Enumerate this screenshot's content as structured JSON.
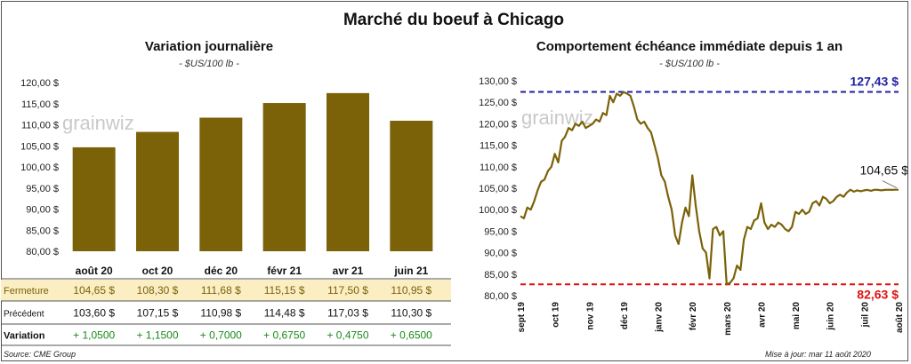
{
  "main_title": "Marché du boeuf à Chicago",
  "source": "Source: CME Group",
  "updated": "Mise à jour: mar 11 août 2020",
  "watermark": "grainwiz",
  "colors": {
    "bar": "#7b6108",
    "line": "#7b6108",
    "high": "#1f1fa6",
    "low": "#e01010",
    "positive": "#1a8a1a",
    "highlight_row": "#fbeec3"
  },
  "chart_data": [
    {
      "type": "bar",
      "title": "Variation  journalière",
      "subtitle": "- $US/100 lb -",
      "categories": [
        "août 20",
        "oct 20",
        "déc 20",
        "févr 21",
        "avr 21",
        "juin 21"
      ],
      "values": [
        104.65,
        108.3,
        111.68,
        115.15,
        117.5,
        110.95
      ],
      "ylim": [
        80,
        120
      ],
      "yticks": [
        "80,00 $",
        "85,00 $",
        "90,00 $",
        "95,00 $",
        "100,00 $",
        "105,00 $",
        "110,00 $",
        "115,00 $",
        "120,00 $"
      ],
      "table": {
        "rows": [
          {
            "label": "Fermeture",
            "values": [
              "104,65  $",
              "108,30  $",
              "111,68  $",
              "115,15  $",
              "117,50  $",
              "110,95  $"
            ]
          },
          {
            "label": "Précédent",
            "values": [
              "103,60  $",
              "107,15  $",
              "110,98  $",
              "114,48  $",
              "117,03  $",
              "110,30  $"
            ]
          },
          {
            "label": "Variation",
            "values": [
              "+ 1,0500",
              "+ 1,1500",
              "+ 0,7000",
              "+ 0,6750",
              "+ 0,4750",
              "+ 0,6500"
            ]
          }
        ]
      }
    },
    {
      "type": "line",
      "title": "Comportement  échéance immédiate depuis 1 an",
      "subtitle": "- $US/100 lb -",
      "ylim": [
        80,
        130
      ],
      "yticks": [
        "80,00 $",
        "85,00 $",
        "90,00 $",
        "95,00 $",
        "100,00 $",
        "105,00 $",
        "110,00 $",
        "115,00 $",
        "120,00 $",
        "125,00 $",
        "130,00 $"
      ],
      "xticks": [
        "sept 19",
        "oct 19",
        "nov 19",
        "déc 19",
        "janv 20",
        "févr 20",
        "mars 20",
        "avr 20",
        "mai 20",
        "juin 20",
        "juil 20",
        "août 20"
      ],
      "high": {
        "value": 127.43,
        "label": "127,43 $"
      },
      "low": {
        "value": 82.63,
        "label": "82,63 $"
      },
      "last": {
        "value": 104.65,
        "label": "104,65 $"
      },
      "series": [
        {
          "x": [
            0,
            0.1,
            0.2,
            0.3,
            0.4,
            0.5,
            0.6,
            0.7,
            0.8,
            0.9,
            1.0,
            1.1,
            1.2,
            1.3,
            1.4,
            1.5,
            1.6,
            1.7,
            1.8,
            1.9,
            2.0,
            2.1,
            2.2,
            2.3,
            2.4,
            2.5,
            2.6,
            2.7,
            2.8,
            2.9,
            3.0,
            3.1,
            3.2,
            3.3,
            3.4,
            3.5,
            3.6,
            3.7,
            3.8,
            3.9,
            4.0,
            4.1,
            4.2,
            4.3,
            4.4,
            4.5,
            4.6,
            4.7,
            4.8,
            4.9,
            5.0,
            5.1,
            5.2,
            5.3,
            5.4,
            5.5,
            5.6,
            5.7,
            5.8,
            5.9,
            6.0,
            6.1,
            6.2,
            6.3,
            6.4,
            6.5,
            6.6,
            6.7,
            6.8,
            6.9,
            7.0,
            7.1,
            7.2,
            7.3,
            7.4,
            7.5,
            7.6,
            7.7,
            7.8,
            7.9,
            8.0,
            8.1,
            8.2,
            8.3,
            8.4,
            8.5,
            8.6,
            8.7,
            8.8,
            8.9,
            9.0,
            9.1,
            9.2,
            9.3,
            9.4,
            9.5,
            9.6,
            9.7,
            9.8,
            9.9,
            10.0,
            10.1,
            10.2,
            10.3,
            10.4,
            10.5,
            10.6,
            10.7,
            10.8,
            10.9,
            11.0
          ],
          "values": [
            98.5,
            98.0,
            100.5,
            100.0,
            102.0,
            104.5,
            106.5,
            107.0,
            109.0,
            110.0,
            113.0,
            111.0,
            116.0,
            117.0,
            119.0,
            118.5,
            120.0,
            119.5,
            120.5,
            119.0,
            119.5,
            120.0,
            121.0,
            120.5,
            122.5,
            122.0,
            126.5,
            125.0,
            127.0,
            126.5,
            127.4,
            127.0,
            126.5,
            124.0,
            121.0,
            120.0,
            120.5,
            119.0,
            118.0,
            115.0,
            112.0,
            108.0,
            106.5,
            103.0,
            100.0,
            94.0,
            92.0,
            97.0,
            100.5,
            98.5,
            108.0,
            101.0,
            95.0,
            91.0,
            90.0,
            84.0,
            95.5,
            96.0,
            94.0,
            95.0,
            82.6,
            83.0,
            84.0,
            87.0,
            86.0,
            93.0,
            96.0,
            95.5,
            97.5,
            98.0,
            101.5,
            97.0,
            95.5,
            96.5,
            96.0,
            97.0,
            96.5,
            95.5,
            95.0,
            96.0,
            99.5,
            99.0,
            100.0,
            99.0,
            99.5,
            101.5,
            102.0,
            101.0,
            103.0,
            102.5,
            101.5,
            102.0,
            103.0,
            103.5,
            103.0,
            104.0,
            104.65,
            104.2,
            104.5,
            104.3,
            104.5,
            104.6,
            104.4,
            104.65,
            104.6,
            104.5,
            104.6,
            104.65,
            104.6,
            104.65,
            104.65
          ]
        }
      ]
    }
  ]
}
